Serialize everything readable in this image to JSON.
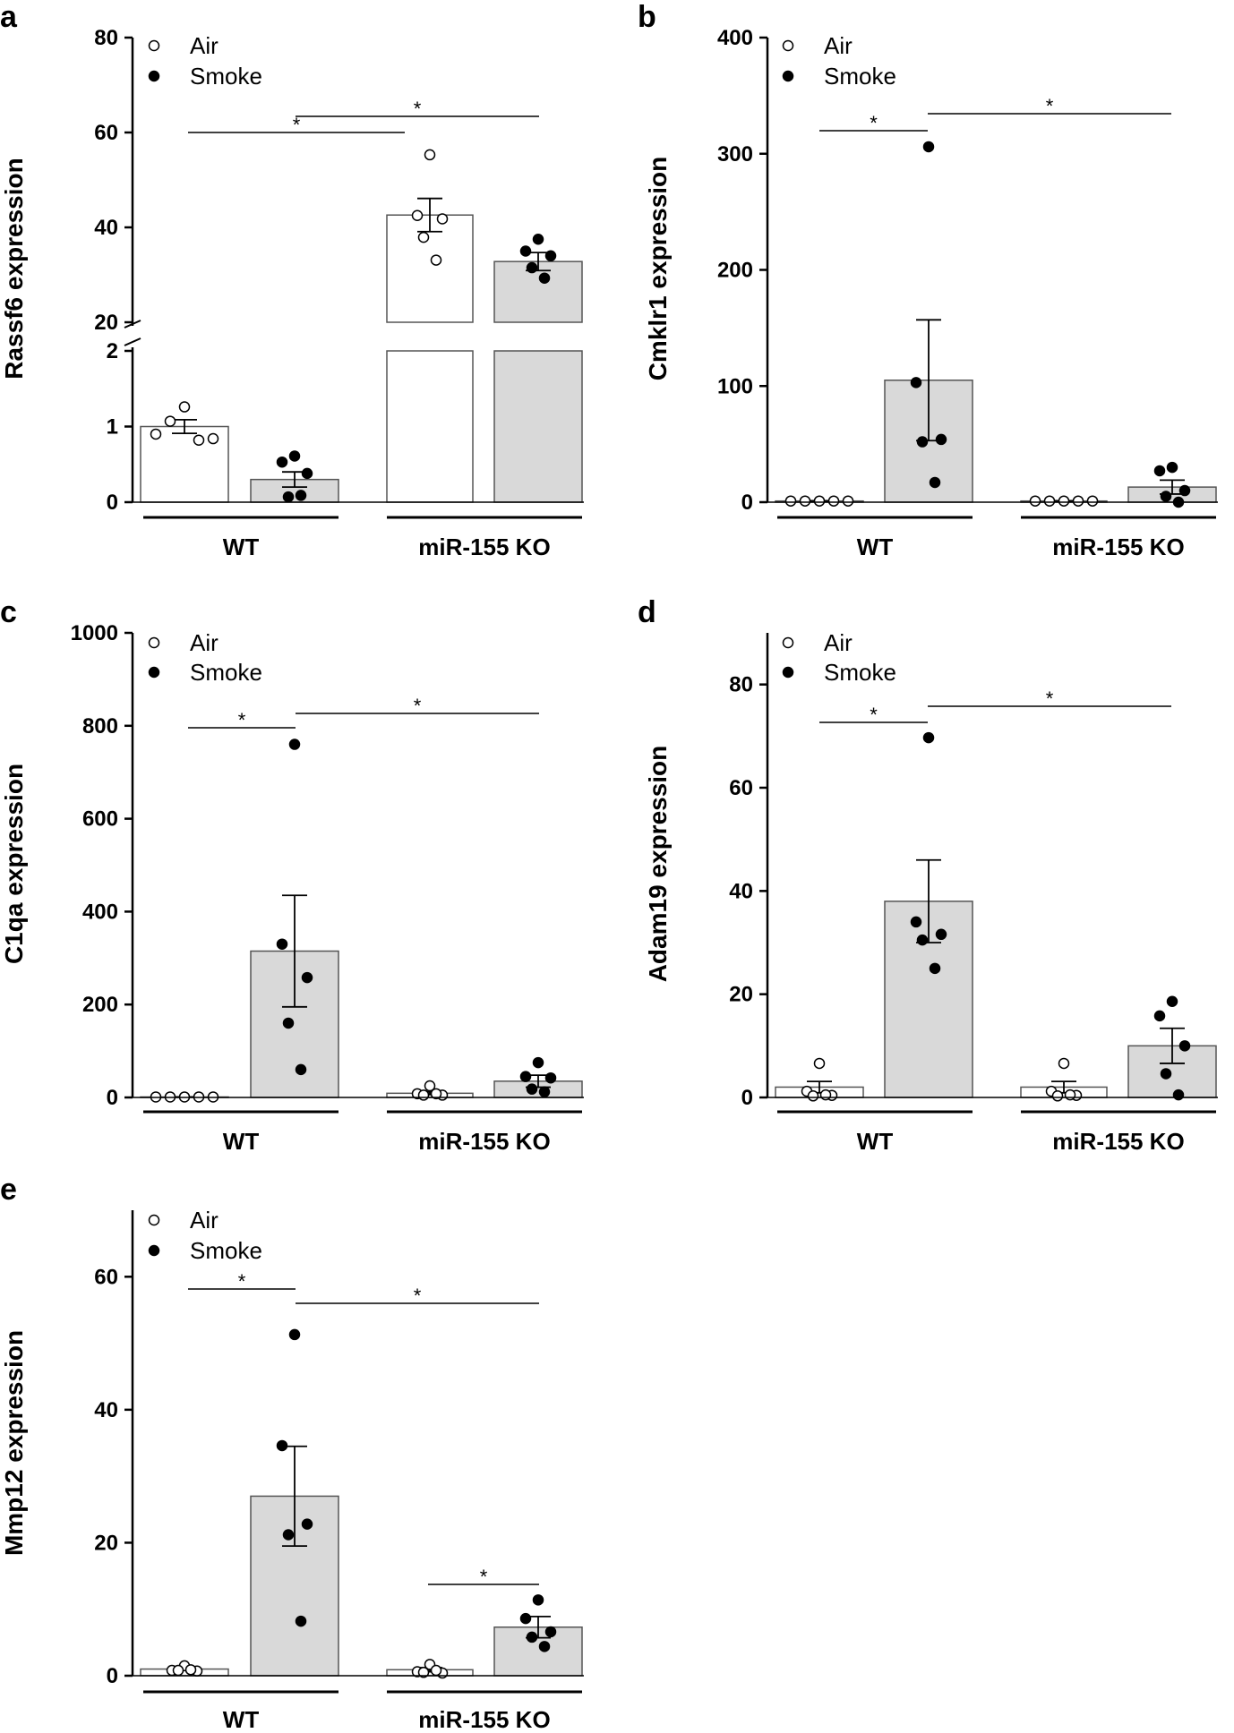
{
  "colors": {
    "air_bar": "#ffffff",
    "smoke_bar": "#d9d9d9",
    "stroke": "#555555",
    "axis": "#000000"
  },
  "chart_data": [
    {
      "type": "bar",
      "panel": "a",
      "ylabel": "Rassf6 expression",
      "axis_break": true,
      "lower_ylim": [
        0,
        2
      ],
      "lower_ticks": [
        "0",
        "1",
        "2"
      ],
      "upper_ylim": [
        20,
        80
      ],
      "upper_ticks": [
        "20",
        "40",
        "60",
        "80"
      ],
      "groups": [
        "WT",
        "miR-155 KO"
      ],
      "legend": [
        "Air",
        "Smoke"
      ],
      "series": [
        {
          "name": "Air",
          "means": [
            1.0,
            42.6
          ],
          "sem": [
            0.09,
            3.5
          ],
          "points": [
            [
              0.9,
              1.07,
              1.26,
              0.82,
              0.84
            ],
            [
              55.3,
              42.5,
              41.8,
              37.9,
              33.1
            ]
          ]
        },
        {
          "name": "Smoke",
          "means": [
            0.3,
            32.8
          ],
          "sem": [
            0.1,
            1.9
          ],
          "points": [
            [
              0.61,
              0.53,
              0.38,
              0.07,
              0.09
            ],
            [
              37.5,
              35.0,
              34.0,
              31.5,
              29.3
            ]
          ]
        }
      ],
      "significance": [
        {
          "from": "WT Air",
          "to": "miR-155 KO Air",
          "label": "*"
        },
        {
          "from": "WT Smoke",
          "to": "miR-155 KO Smoke",
          "label": "*"
        }
      ]
    },
    {
      "type": "bar",
      "panel": "b",
      "ylabel": "Cmklr1 expression",
      "ylim": [
        0,
        400
      ],
      "ticks": [
        "0",
        "100",
        "200",
        "300",
        "400"
      ],
      "groups": [
        "WT",
        "miR-155 KO"
      ],
      "legend": [
        "Air",
        "Smoke"
      ],
      "series": [
        {
          "name": "Air",
          "means": [
            1,
            1
          ],
          "sem": [
            0.2,
            0.2
          ],
          "points": [
            [
              1,
              1,
              1,
              1,
              1
            ],
            [
              1,
              1,
              1,
              1,
              1
            ]
          ]
        },
        {
          "name": "Smoke",
          "means": [
            105,
            13
          ],
          "sem": [
            52,
            6
          ],
          "points": [
            [
              306,
              103,
              54,
              52,
              17
            ],
            [
              30,
              27,
              10,
              5,
              0
            ]
          ]
        }
      ],
      "significance": [
        {
          "from": "WT Air",
          "to": "WT Smoke",
          "label": "*"
        },
        {
          "from": "WT Smoke",
          "to": "miR-155 KO Smoke",
          "label": "*"
        }
      ]
    },
    {
      "type": "bar",
      "panel": "c",
      "ylabel": "C1qa expression",
      "ylim": [
        0,
        1000
      ],
      "ticks": [
        "0",
        "200",
        "400",
        "600",
        "800",
        "1000"
      ],
      "groups": [
        "WT",
        "miR-155 KO"
      ],
      "legend": [
        "Air",
        "Smoke"
      ],
      "series": [
        {
          "name": "Air",
          "means": [
            1,
            9
          ],
          "sem": [
            0.2,
            3
          ],
          "points": [
            [
              1,
              1,
              1,
              1,
              1
            ],
            [
              25,
              8,
              5,
              5,
              8
            ]
          ]
        },
        {
          "name": "Smoke",
          "means": [
            315,
            35
          ],
          "sem": [
            120,
            13
          ],
          "points": [
            [
              760,
              330,
              258,
              160,
              60
            ],
            [
              75,
              45,
              42,
              18,
              12
            ]
          ]
        }
      ],
      "significance": [
        {
          "from": "WT Air",
          "to": "WT Smoke",
          "label": "*"
        },
        {
          "from": "WT Smoke",
          "to": "miR-155 KO Smoke",
          "label": "*"
        }
      ]
    },
    {
      "type": "bar",
      "panel": "d",
      "ylabel": "Adam19 expression",
      "ylim": [
        0,
        90
      ],
      "ticks": [
        "0",
        "20",
        "40",
        "60",
        "80"
      ],
      "groups": [
        "WT",
        "miR-155 KO"
      ],
      "legend": [
        "Air",
        "Smoke"
      ],
      "series": [
        {
          "name": "Air",
          "means": [
            2,
            2
          ],
          "sem": [
            1.1,
            1.1
          ],
          "points": [
            [
              6.6,
              1.2,
              0.4,
              0.3,
              0.5
            ],
            [
              6.6,
              1.2,
              0.4,
              0.3,
              0.5
            ]
          ]
        },
        {
          "name": "Smoke",
          "means": [
            38,
            10
          ],
          "sem": [
            8,
            3.4
          ],
          "points": [
            [
              69.7,
              34.0,
              31.6,
              30.5,
              25.0
            ],
            [
              18.6,
              15.8,
              10.0,
              4.6,
              0.5
            ]
          ]
        }
      ],
      "significance": [
        {
          "from": "WT Air",
          "to": "WT Smoke",
          "label": "*"
        },
        {
          "from": "WT Smoke",
          "to": "miR-155 KO Smoke",
          "label": "*"
        }
      ]
    },
    {
      "type": "bar",
      "panel": "e",
      "ylabel": "Mmp12 expression",
      "ylim": [
        0,
        70
      ],
      "ticks": [
        "0",
        "20",
        "40",
        "60"
      ],
      "groups": [
        "WT",
        "miR-155 KO"
      ],
      "legend": [
        "Air",
        "Smoke"
      ],
      "series": [
        {
          "name": "Air",
          "means": [
            1,
            0.9
          ],
          "sem": [
            0.15,
            0.3
          ],
          "points": [
            [
              1.5,
              0.8,
              0.7,
              0.8,
              0.9
            ],
            [
              1.7,
              0.6,
              0.4,
              0.5,
              0.8
            ]
          ]
        },
        {
          "name": "Smoke",
          "means": [
            27,
            7.3
          ],
          "sem": [
            7.5,
            1.6
          ],
          "points": [
            [
              51.3,
              34.6,
              22.8,
              21.2,
              8.2
            ],
            [
              11.4,
              8.6,
              6.6,
              5.8,
              4.4
            ]
          ]
        }
      ],
      "significance": [
        {
          "from": "WT Air",
          "to": "WT Smoke",
          "label": "*"
        },
        {
          "from": "WT Smoke",
          "to": "miR-155 KO Smoke",
          "label": "*"
        },
        {
          "from": "miR-155 KO Air",
          "to": "miR-155 KO Smoke",
          "label": "*"
        }
      ]
    }
  ]
}
